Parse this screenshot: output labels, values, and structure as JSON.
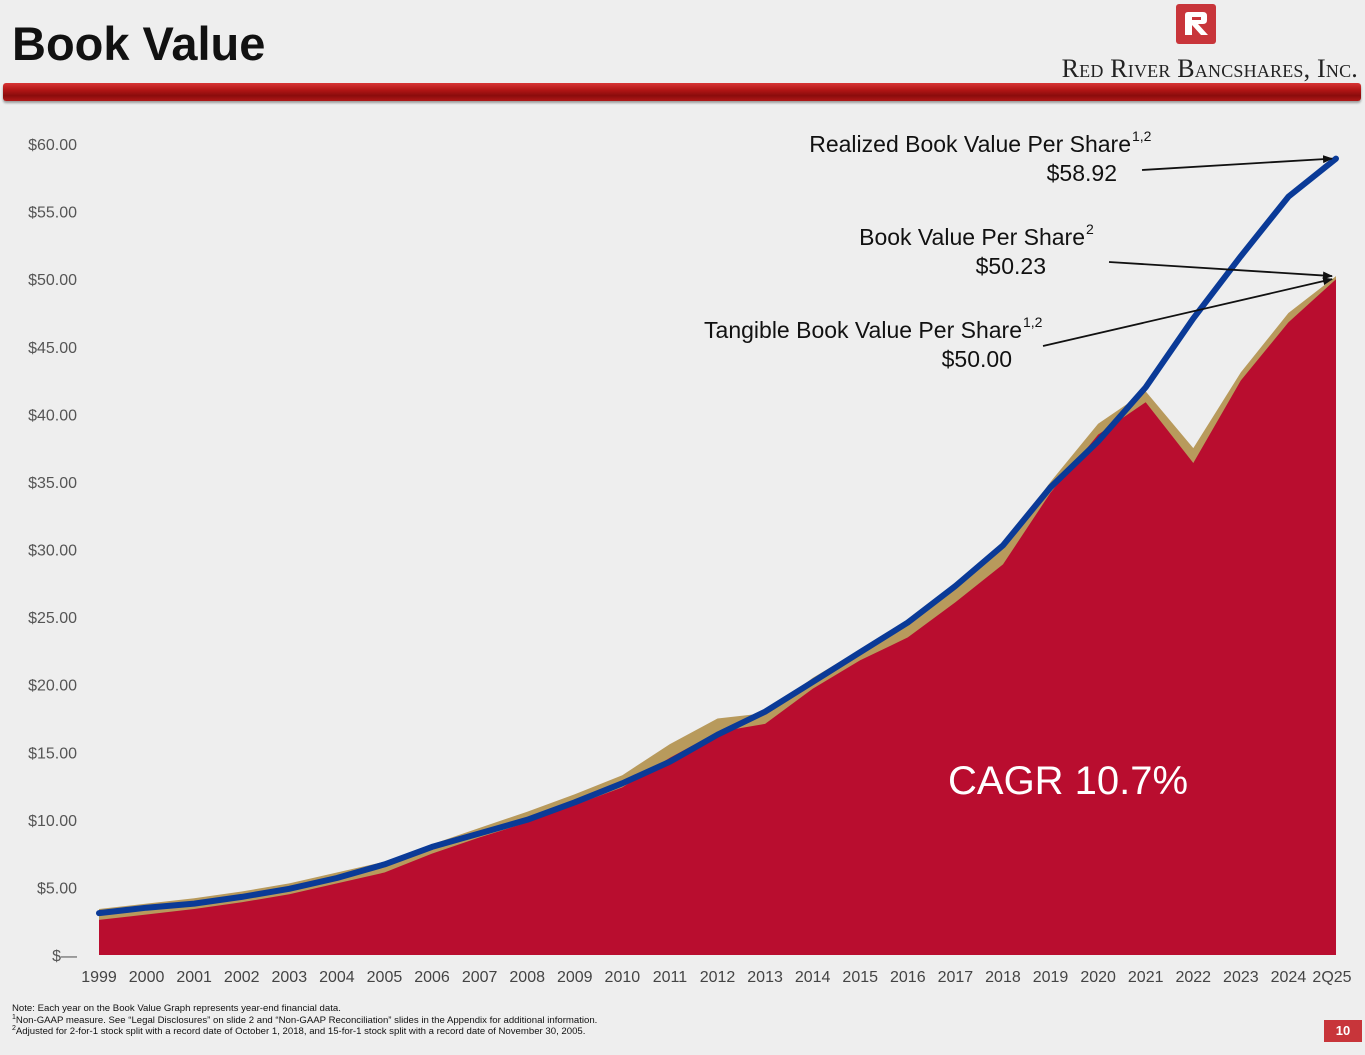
{
  "header": {
    "title": "Book Value",
    "company_name": "Red River Bancshares, Inc.",
    "accent_color": "#b5121b"
  },
  "chart_data": {
    "type": "area",
    "categories": [
      "1999",
      "2000",
      "2001",
      "2002",
      "2003",
      "2004",
      "2005",
      "2006",
      "2007",
      "2008",
      "2009",
      "2010",
      "2011",
      "2012",
      "2013",
      "2014",
      "2015",
      "2016",
      "2017",
      "2018",
      "2019",
      "2020",
      "2021",
      "2022",
      "2023",
      "2024",
      "2Q25"
    ],
    "y_tick_labels": [
      "$—",
      "$5.00",
      "$10.00",
      "$15.00",
      "$20.00",
      "$25.00",
      "$30.00",
      "$35.00",
      "$40.00",
      "$45.00",
      "$50.00",
      "$55.00",
      "$60.00"
    ],
    "ylim": [
      0,
      60
    ],
    "grid": false,
    "series": [
      {
        "name": "Book Value Per Share",
        "type": "area",
        "color": "#b89a5c",
        "values": [
          3.4,
          3.8,
          4.2,
          4.7,
          5.3,
          6.1,
          6.9,
          8.2,
          9.4,
          10.6,
          11.9,
          13.3,
          15.6,
          17.5,
          17.9,
          20.5,
          22.6,
          24.4,
          27.2,
          30.3,
          35.0,
          39.3,
          41.7,
          37.5,
          43.1,
          47.5,
          50.23
        ],
        "annotation": {
          "label": "Book Value Per Share",
          "sup": "2",
          "value_label": "$50.23"
        }
      },
      {
        "name": "Tangible Book Value Per Share",
        "type": "area",
        "color": "#b90d2f",
        "values": [
          2.6,
          3.0,
          3.4,
          3.9,
          4.5,
          5.3,
          6.1,
          7.5,
          8.7,
          9.8,
          11.1,
          12.4,
          14.6,
          16.5,
          17.1,
          19.7,
          21.8,
          23.5,
          26.1,
          28.9,
          34.2,
          38.5,
          40.9,
          36.4,
          42.5,
          46.8,
          50.0
        ],
        "annotation": {
          "label": "Tangible Book Value Per Share",
          "sup": "1,2",
          "value_label": "$50.00"
        }
      },
      {
        "name": "Realized Book Value Per Share",
        "type": "line",
        "color": "#0a3a97",
        "values": [
          3.1,
          3.5,
          3.8,
          4.3,
          4.9,
          5.7,
          6.7,
          8.0,
          9.0,
          10.0,
          11.3,
          12.7,
          14.3,
          16.3,
          18.0,
          20.2,
          22.4,
          24.6,
          27.3,
          30.3,
          34.6,
          38.0,
          42.0,
          47.1,
          51.7,
          56.1,
          58.92
        ],
        "annotation": {
          "label": "Realized Book Value Per Share",
          "sup": "1,2",
          "value_label": "$58.92"
        }
      }
    ],
    "annotations": [
      "CAGR 10.7%"
    ]
  },
  "footnotes": {
    "note": "Note: Each year on the Book Value Graph represents year-end financial data.",
    "fn1_marker": "1",
    "fn1": "Non-GAAP measure. See “Legal Disclosures” on slide 2 and “Non-GAAP Reconciliation” slides in the Appendix for additional information.",
    "fn2_marker": "2",
    "fn2": "Adjusted for 2-for-1 stock split with a record date of October 1, 2018, and 15-for-1 stock split with a record date of November 30, 2005."
  },
  "page_number": "10"
}
